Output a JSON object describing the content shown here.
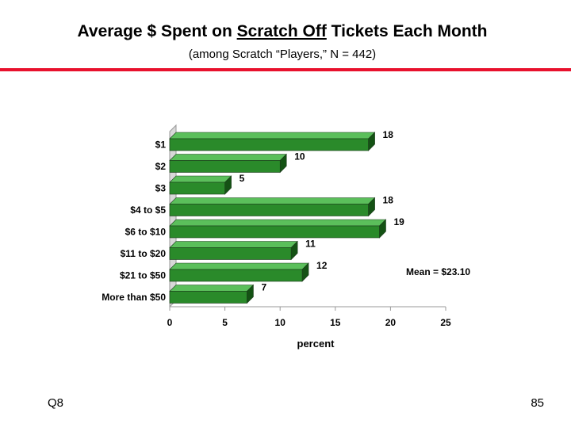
{
  "header": {
    "title_part1": "Average $ Spent on ",
    "title_underlined": "Scratch Off",
    "title_part2": " Tickets Each Month",
    "subtitle": "(among Scratch “Players,” N = 442)"
  },
  "footer": {
    "question": "Q8",
    "page_number": "85"
  },
  "colors": {
    "accent_rule": "#e8112d",
    "bar_front": "#2a8a2a",
    "bar_top": "#5bbf5b",
    "bar_side": "#145214"
  },
  "chart_data": {
    "type": "bar",
    "orientation": "horizontal",
    "style": "3d",
    "categories": [
      "$1",
      "$2",
      "$3",
      "$4 to $5",
      "$6 to $10",
      "$11 to $20",
      "$21 to $50",
      "More than $50"
    ],
    "values": [
      18,
      10,
      5,
      18,
      19,
      11,
      12,
      7
    ],
    "value_labels": [
      "18",
      "10",
      "5",
      "18",
      "19",
      "11",
      "12",
      "7"
    ],
    "xlabel": "percent",
    "xlim": [
      0,
      25
    ],
    "xticks": [
      0,
      5,
      10,
      15,
      20,
      25
    ],
    "xtick_labels": [
      "0",
      "5",
      "10",
      "15",
      "20",
      "25"
    ],
    "annotation": "Mean = $23.10",
    "grid": false,
    "legend": "none"
  }
}
